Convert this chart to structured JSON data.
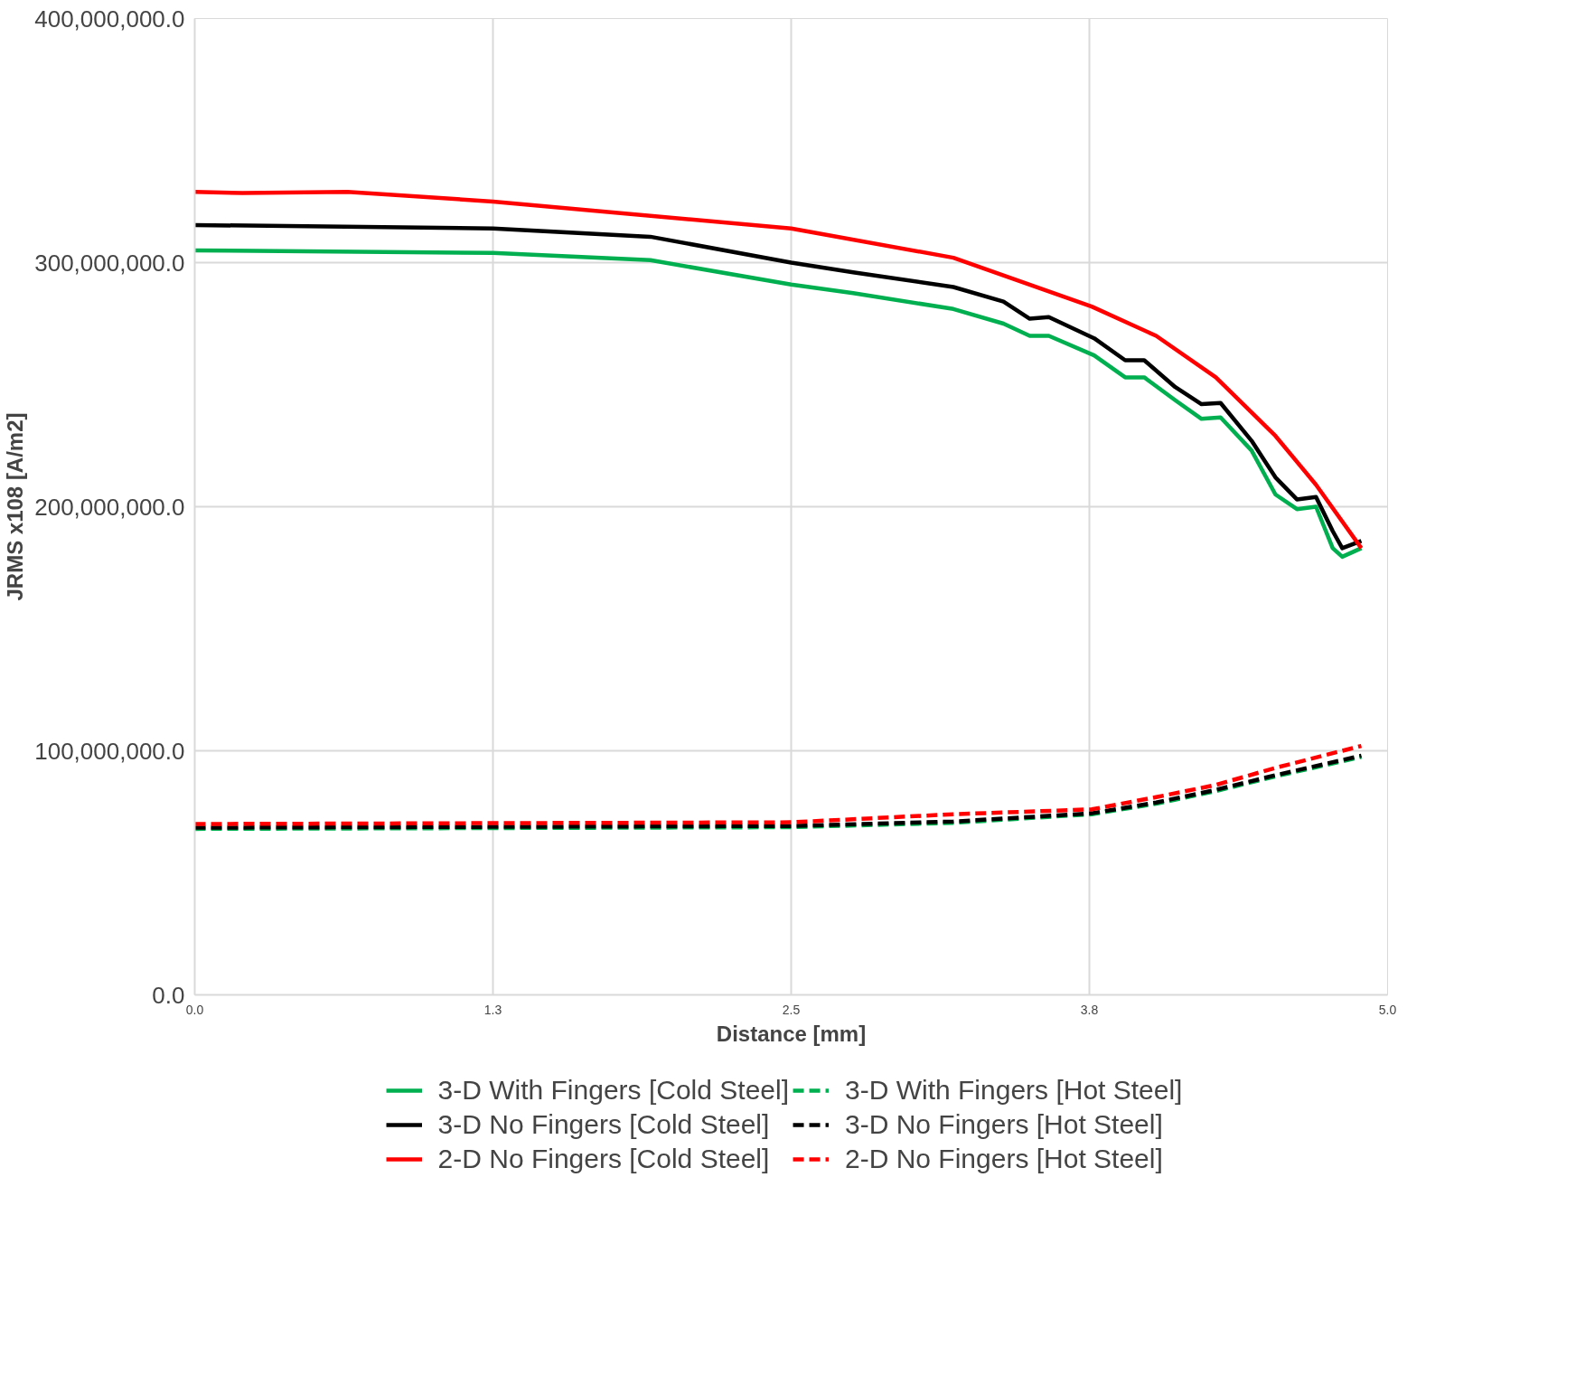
{
  "chart_data": {
    "type": "line",
    "xlabel": "Distance [mm]",
    "ylabel": "JRMS x108 [A/m2]",
    "xlim": [
      0,
      5
    ],
    "ylim": [
      0,
      400000000
    ],
    "xticks": [
      {
        "value": 0,
        "label": "0.0"
      },
      {
        "value": 1.25,
        "label": "1.3"
      },
      {
        "value": 2.5,
        "label": "2.5"
      },
      {
        "value": 3.75,
        "label": "3.8"
      },
      {
        "value": 5,
        "label": "5.0"
      }
    ],
    "yticks": [
      {
        "value": 0,
        "label": "0.0"
      },
      {
        "value": 100000000,
        "label": "100,000,000.0"
      },
      {
        "value": 200000000,
        "label": "200,000,000.0"
      },
      {
        "value": 300000000,
        "label": "300,000,000.0"
      },
      {
        "value": 400000000,
        "label": "400,000,000.0"
      }
    ],
    "grid": true,
    "legend": "bottom",
    "marker": "none",
    "series": [
      {
        "name": "3-D With Fingers [Cold Steel]",
        "color": "#00b050",
        "line_style": "solid",
        "x": [
          0,
          1.25,
          1.91,
          2.5,
          2.76,
          3.18,
          3.39,
          3.5,
          3.58,
          3.77,
          3.9,
          3.98,
          4.11,
          4.22,
          4.3,
          4.43,
          4.53,
          4.62,
          4.7,
          4.77,
          4.81,
          4.89
        ],
        "values": [
          305000000,
          304000000,
          301000000,
          291000000,
          287500000,
          281000000,
          275000000,
          270000000,
          270000000,
          262000000,
          253000000,
          253000000,
          243600000,
          236000000,
          236600000,
          223000000,
          205000000,
          199000000,
          200000000,
          183000000,
          179500000,
          183000000
        ]
      },
      {
        "name": "3-D No Fingers [Cold Steel]",
        "color": "#000000",
        "line_style": "solid",
        "x": [
          0,
          1.25,
          1.91,
          2.5,
          2.76,
          3.18,
          3.39,
          3.5,
          3.58,
          3.77,
          3.9,
          3.98,
          4.11,
          4.22,
          4.3,
          4.43,
          4.53,
          4.62,
          4.7,
          4.77,
          4.81,
          4.89
        ],
        "values": [
          315400000,
          314000000,
          310600000,
          300000000,
          296000000,
          290000000,
          284000000,
          277000000,
          277700000,
          269000000,
          260000000,
          260000000,
          249000000,
          242000000,
          242500000,
          227000000,
          212000000,
          203000000,
          204000000,
          190000000,
          183000000,
          186000000
        ]
      },
      {
        "name": "2-D No Fingers [Cold Steel]",
        "color": "#ff0000",
        "line_style": "solid",
        "x": [
          0,
          0.2,
          0.64,
          1.25,
          2.5,
          3.18,
          3.76,
          4.03,
          4.28,
          4.53,
          4.7,
          4.89
        ],
        "values": [
          329000000,
          328500000,
          329000000,
          325000000,
          314000000,
          302000000,
          282000000,
          270000000,
          253000000,
          229000000,
          209000000,
          183000000
        ]
      },
      {
        "name": "3-D With Fingers [Hot Steel]",
        "color": "#00b050",
        "line_style": "dashed",
        "x": [
          0,
          2.5,
          3.18,
          3.76,
          4.03,
          4.28,
          4.53,
          4.89
        ],
        "values": [
          68000000,
          68700000,
          70500000,
          74000000,
          78300000,
          83500000,
          89500000,
          97500000
        ]
      },
      {
        "name": "3-D No Fingers [Hot Steel]",
        "color": "#000000",
        "line_style": "dashed",
        "x": [
          0,
          2.5,
          3.18,
          3.76,
          4.03,
          4.28,
          4.53,
          4.89
        ],
        "values": [
          68500000,
          69200000,
          71000000,
          74400000,
          78800000,
          84000000,
          90000000,
          98000000
        ]
      },
      {
        "name": "2-D No Fingers [Hot Steel]",
        "color": "#ff0000",
        "line_style": "dashed",
        "x": [
          0,
          2.5,
          3.18,
          3.76,
          4.03,
          4.28,
          4.53,
          4.89
        ],
        "values": [
          70000000,
          70700000,
          74000000,
          76000000,
          81000000,
          86000000,
          93000000,
          102000000
        ]
      }
    ]
  }
}
